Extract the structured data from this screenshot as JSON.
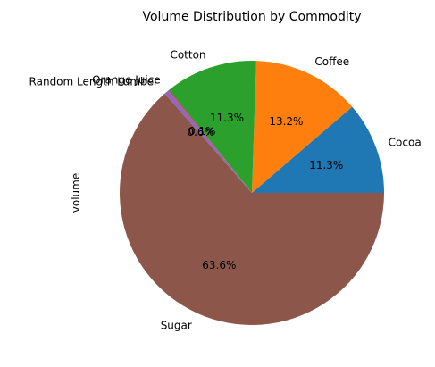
{
  "chart_data": {
    "type": "pie",
    "title": "Volume Distribution by Commodity",
    "ylabel": "volume",
    "start_angle_deg": 0,
    "direction": "counterclockwise",
    "slices": [
      {
        "label": "Cocoa",
        "value": 11.3,
        "pct_label": "11.3%",
        "color": "#1f77b4"
      },
      {
        "label": "Coffee",
        "value": 13.2,
        "pct_label": "13.2%",
        "color": "#ff7f0e"
      },
      {
        "label": "Cotton",
        "value": 11.3,
        "pct_label": "11.3%",
        "color": "#2ca02c"
      },
      {
        "label": "Orange Juice",
        "value": 0.1,
        "pct_label": "0.1%",
        "color": "#d62728"
      },
      {
        "label": "Random Length Lumber",
        "value": 0.6,
        "pct_label": "0.6%",
        "color": "#9467bd"
      },
      {
        "label": "Sugar",
        "value": 63.6,
        "pct_label": "63.6%",
        "color": "#8c564b"
      }
    ]
  }
}
